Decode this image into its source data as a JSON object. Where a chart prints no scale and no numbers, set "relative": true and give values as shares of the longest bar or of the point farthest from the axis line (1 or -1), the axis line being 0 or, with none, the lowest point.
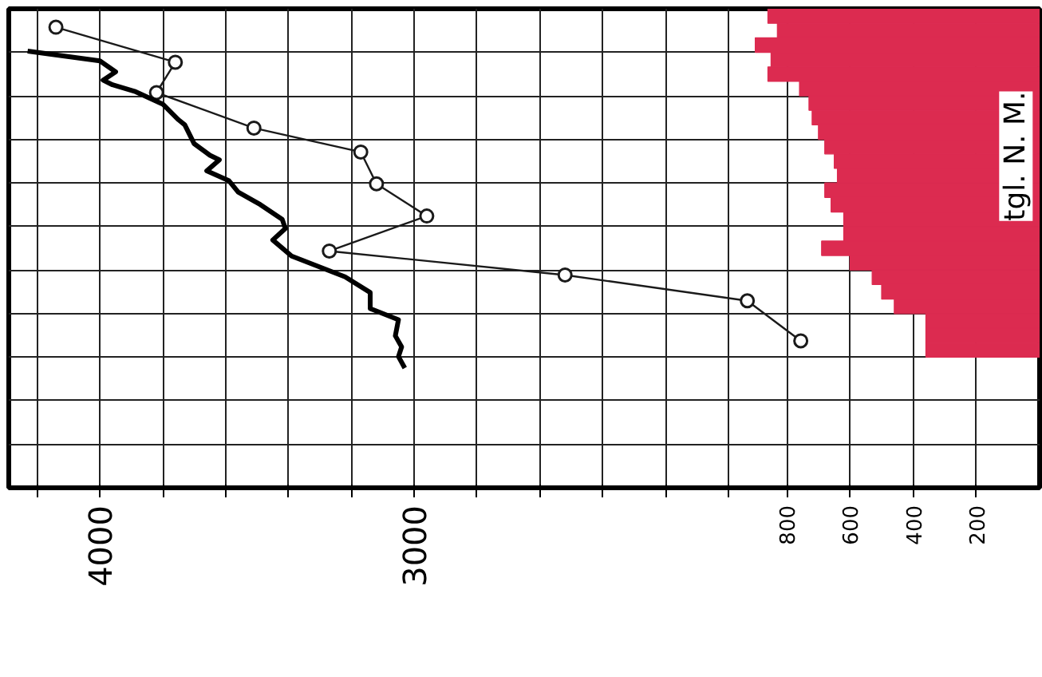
{
  "chart_data": [
    {
      "type": "line",
      "relative": true,
      "grid": true,
      "xlim": [
        4290,
        1010
      ],
      "xticks": [
        {
          "value": 4200,
          "label": null
        },
        4000,
        {
          "value": 3800,
          "label": null
        },
        {
          "value": 3600,
          "label": null
        },
        {
          "value": 3400,
          "label": null
        },
        {
          "value": 3200,
          "label": null
        },
        3000,
        {
          "value": 2800,
          "label": null
        },
        {
          "value": 2600,
          "label": null
        },
        {
          "value": 2400,
          "label": null
        },
        {
          "value": 2200,
          "label": null
        },
        {
          "value": 2000,
          "label": null
        }
      ],
      "series": [
        {
          "marker": "circle",
          "color": "#1a1a1a",
          "x": [
            4140,
            3760,
            3820,
            3510,
            3170,
            3120,
            2960,
            3270,
            2520,
            1940,
            1770
          ],
          "values": [
            1.0,
            0.924,
            0.858,
            0.781,
            0.729,
            0.66,
            0.59,
            0.514,
            0.462,
            0.406,
            0.319
          ]
        },
        {
          "marker": "none",
          "color": "#000000",
          "x": [
            4230,
            4000,
            3950,
            3990,
            3960,
            3890,
            3800,
            3750,
            3730,
            3700,
            3650,
            3620,
            3660,
            3590,
            3560,
            3490,
            3420,
            3410,
            3450,
            3390,
            3220,
            3140,
            3140,
            3050,
            3060,
            3040,
            3050,
            3030
          ],
          "values": [
            0.948,
            0.927,
            0.903,
            0.885,
            0.875,
            0.861,
            0.833,
            0.799,
            0.788,
            0.747,
            0.722,
            0.712,
            0.688,
            0.667,
            0.642,
            0.615,
            0.583,
            0.563,
            0.538,
            0.503,
            0.458,
            0.424,
            0.389,
            0.365,
            0.33,
            0.306,
            0.285,
            0.26
          ]
        }
      ]
    },
    {
      "type": "bar",
      "orientation": "horizontal",
      "grid": true,
      "categories": [
        null,
        null,
        null,
        null,
        null,
        null,
        null,
        null,
        null,
        null,
        null,
        null,
        null,
        null,
        null,
        null,
        null,
        null,
        null,
        null,
        null,
        null,
        null,
        null,
        null,
        null,
        null,
        null,
        null,
        null,
        null,
        null,
        null
      ],
      "xlim": [
        1000,
        0
      ],
      "xticks": [
        800,
        600,
        400,
        200
      ],
      "annotations": [
        "tgl. N. M."
      ],
      "series": [
        {
          "color": "#dc2b50",
          "values": [
            860,
            830,
            900,
            850,
            860,
            760,
            730,
            720,
            700,
            680,
            650,
            640,
            680,
            660,
            620,
            620,
            690,
            600,
            530,
            500,
            460,
            360,
            360,
            360,
            null,
            null,
            null,
            null,
            null,
            null,
            null,
            null,
            null
          ]
        }
      ]
    }
  ]
}
